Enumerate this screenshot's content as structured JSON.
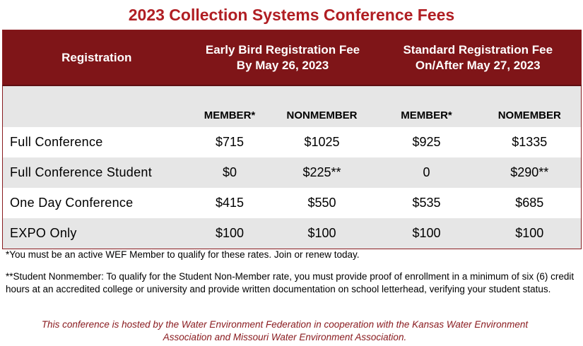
{
  "title": "2023 Collection Systems Conference Fees",
  "table": {
    "header": {
      "registration": "Registration",
      "early_line1": "Early Bird Registration Fee",
      "early_line2": "By May 26, 2023",
      "standard_line1": "Standard Registration Fee",
      "standard_line2": "On/After May 27, 2023"
    },
    "subheader": {
      "early_member": "MEMBER*",
      "early_nonmember": "NONMEMBER",
      "standard_member": "MEMBER*",
      "standard_nonmember": "NOMEMBER"
    },
    "rows": [
      {
        "label": "Full Conference",
        "early_member": "$715",
        "early_nonmember": "$1025",
        "standard_member": "$925",
        "standard_nonmember": "$1335"
      },
      {
        "label": "Full Conference Student",
        "early_member": "$0",
        "early_nonmember": "$225**",
        "standard_member": "0",
        "standard_nonmember": "$290**"
      },
      {
        "label": "One Day Conference",
        "early_member": "$415",
        "early_nonmember": "$550",
        "standard_member": "$535",
        "standard_nonmember": "$685"
      },
      {
        "label": "EXPO Only",
        "early_member": "$100",
        "early_nonmember": "$100",
        "standard_member": "$100",
        "standard_nonmember": "$100"
      }
    ]
  },
  "notes": {
    "member": "*You must be an active WEF Member to qualify for these rates. Join or renew today.",
    "student": "**Student Nonmember: To qualify for the Student Non-Member rate, you must provide proof of enrollment in a minimum of six (6) credit hours at an accredited college or university and provide written documentation on school letterhead, verifying your student status.",
    "host_line1": "This conference is hosted by the Water Environment Federation in cooperation with  the Kansas Water Environment",
    "host_line2": "Association and Missouri Water Environment Association."
  },
  "colors": {
    "title": "#b01e23",
    "header_bg": "#7f1518",
    "band_bg": "#e6e6e6",
    "host_text": "#8a1c20"
  }
}
